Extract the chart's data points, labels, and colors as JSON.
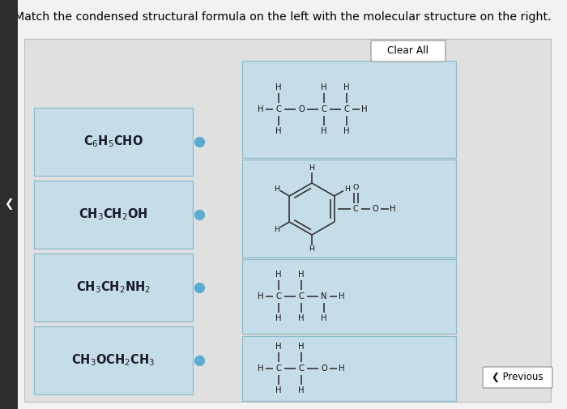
{
  "title": "Match the condensed structural formula on the left with the molecular structure on the right.",
  "bg_color": "#f2f2f2",
  "panel_color": "#e8e8e8",
  "box_color": "#c5dde8",
  "box_edge_color": "#8bbccc",
  "left_formulas": [
    "C$_6$H$_5$CHO",
    "CH$_3$CH$_2$OH",
    "CH$_3$CH$_2$NH$_2$",
    "CH$_3$OCH$_2$CH$_3$"
  ],
  "dot_color": "#5aadd0",
  "clear_all_text": "Clear All",
  "previous_text": "Previous"
}
